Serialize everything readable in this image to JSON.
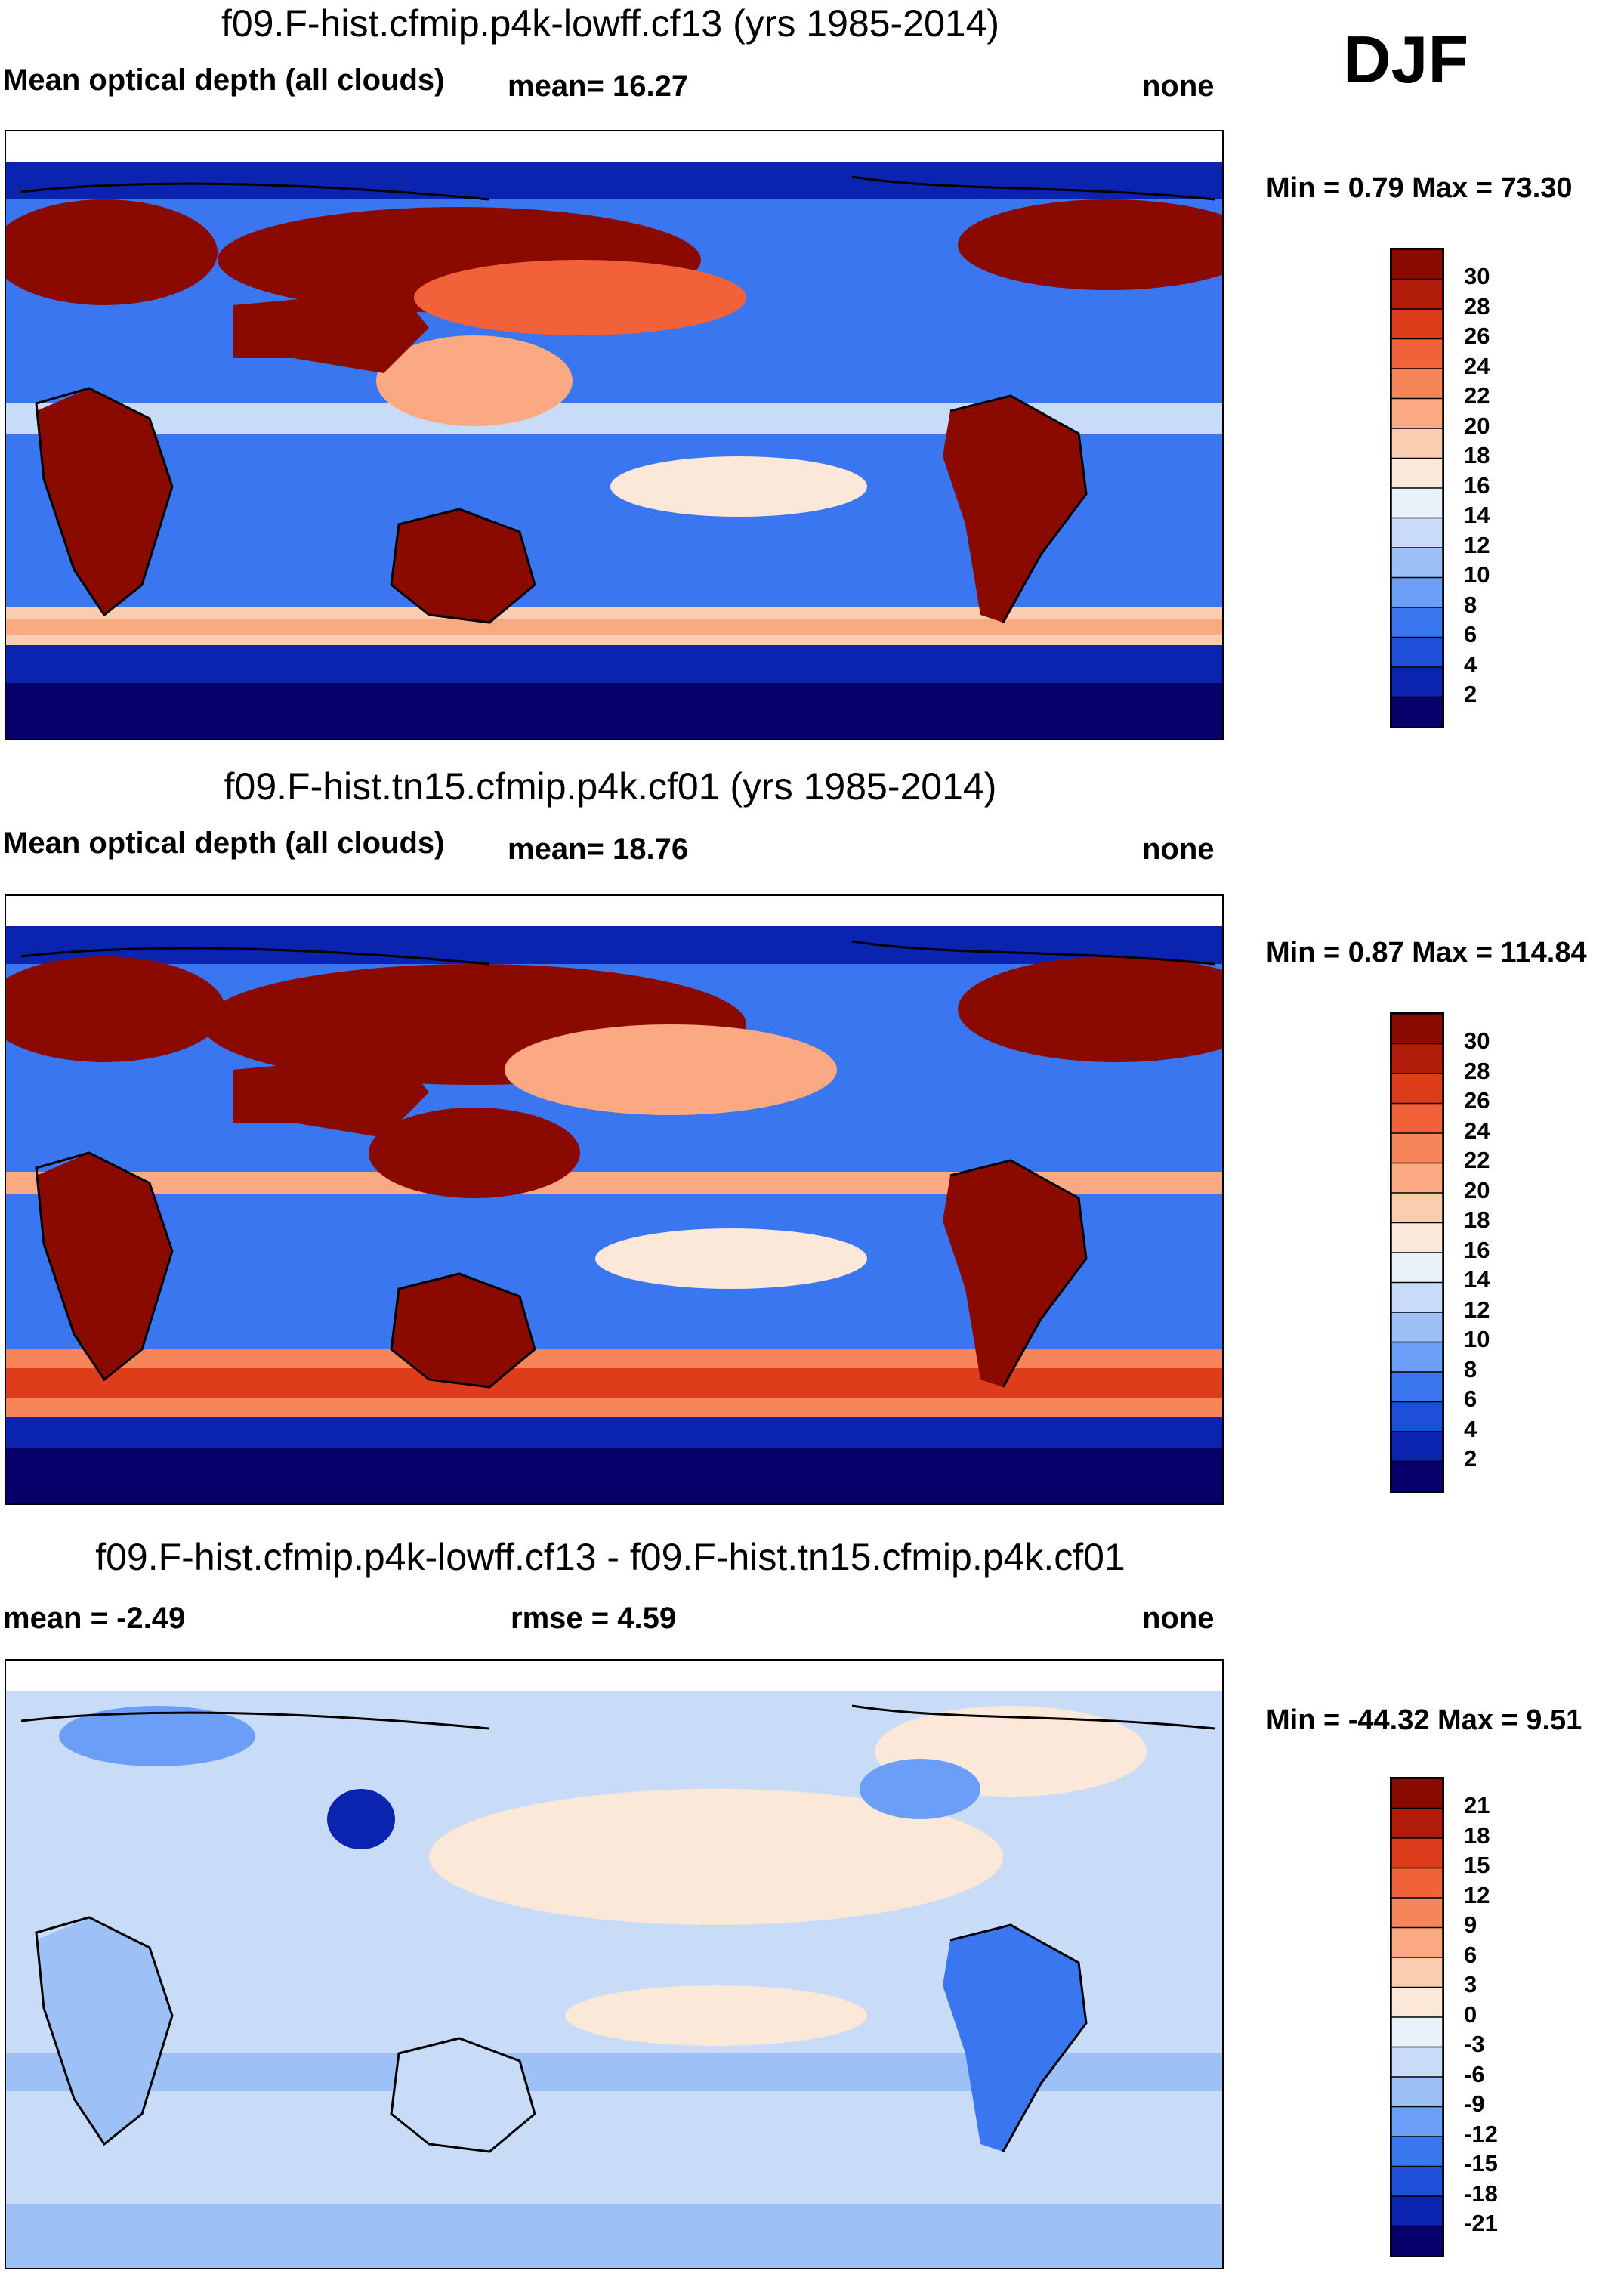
{
  "season": "DJF",
  "colors": {
    "seq": [
      "#08006a",
      "#0b24b0",
      "#1d4fd9",
      "#3a76ef",
      "#6b9ff7",
      "#9dc0f7",
      "#c9dcf7",
      "#e9f1fb",
      "#fce8d9",
      "#fbcdb0",
      "#fba983",
      "#f7855a",
      "#f1613a",
      "#dd3d1b",
      "#b01c09",
      "#8a0a00"
    ],
    "div": [
      "#08006a",
      "#0b24b0",
      "#1d4fd9",
      "#3a76ef",
      "#6b9ff7",
      "#9dc0f7",
      "#c9dcf7",
      "#e9f1fb",
      "#fce8d9",
      "#fbcdb0",
      "#fba983",
      "#f7855a",
      "#f1613a",
      "#dd3d1b",
      "#b01c09",
      "#8a0a00"
    ]
  },
  "panels": [
    {
      "title": "f09.F-hist.cfmip.p4k-lowff.cf13 (yrs 1985-2014)",
      "left_label": "Mean optical depth (all clouds)",
      "mean_text": "mean=  16.27",
      "units": "none",
      "minmax": "Min =   0.79 Max =  73.30",
      "levels": [
        "30",
        "28",
        "26",
        "24",
        "22",
        "20",
        "18",
        "16",
        "14",
        "12",
        "10",
        "8",
        "6",
        "4",
        "2"
      ]
    },
    {
      "title": "f09.F-hist.tn15.cfmip.p4k.cf01 (yrs 1985-2014)",
      "left_label": "Mean optical depth (all clouds)",
      "mean_text": "mean=  18.76",
      "units": "none",
      "minmax": "Min =   0.87 Max = 114.84",
      "levels": [
        "30",
        "28",
        "26",
        "24",
        "22",
        "20",
        "18",
        "16",
        "14",
        "12",
        "10",
        "8",
        "6",
        "4",
        "2"
      ]
    },
    {
      "title": "f09.F-hist.cfmip.p4k-lowff.cf13 - f09.F-hist.tn15.cfmip.p4k.cf01",
      "left_label": "mean =  -2.49",
      "mean_text": "rmse =    4.59",
      "units": "none",
      "minmax": "Min = -44.32 Max =   9.51",
      "levels": [
        "21",
        "18",
        "15",
        "12",
        "9",
        "6",
        "3",
        "0",
        "-3",
        "-6",
        "-9",
        "-12",
        "-15",
        "-18",
        "-21"
      ]
    }
  ],
  "chart_data": [
    {
      "type": "heatmap",
      "title": "f09.F-hist.cfmip.p4k-lowff.cf13 (yrs 1985-2014)",
      "variable": "Mean optical depth (all clouds)",
      "mean": 16.27,
      "min": 0.79,
      "max": 73.3,
      "units": "none",
      "contour_levels": [
        2,
        4,
        6,
        8,
        10,
        12,
        14,
        16,
        18,
        20,
        22,
        24,
        26,
        28,
        30
      ]
    },
    {
      "type": "heatmap",
      "title": "f09.F-hist.tn15.cfmip.p4k.cf01 (yrs 1985-2014)",
      "variable": "Mean optical depth (all clouds)",
      "mean": 18.76,
      "min": 0.87,
      "max": 114.84,
      "units": "none",
      "contour_levels": [
        2,
        4,
        6,
        8,
        10,
        12,
        14,
        16,
        18,
        20,
        22,
        24,
        26,
        28,
        30
      ]
    },
    {
      "type": "heatmap",
      "title": "f09.F-hist.cfmip.p4k-lowff.cf13 - f09.F-hist.tn15.cfmip.p4k.cf01",
      "mean": -2.49,
      "rmse": 4.59,
      "min": -44.32,
      "max": 9.51,
      "units": "none",
      "contour_levels": [
        -21,
        -18,
        -15,
        -12,
        -9,
        -6,
        -3,
        0,
        3,
        6,
        9,
        12,
        15,
        18,
        21
      ]
    }
  ]
}
